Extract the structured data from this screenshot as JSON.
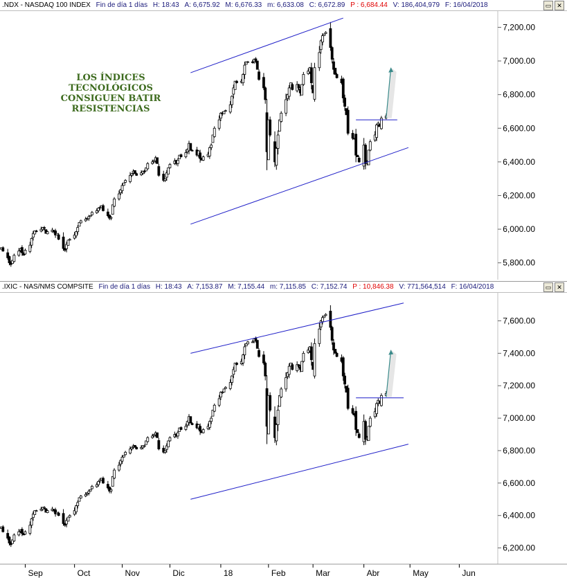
{
  "panels": [
    {
      "header": {
        "symbol": ".NDX - NASDAQ 100 INDEX",
        "period": "Fin de día 1 días",
        "h": "H: 18:43",
        "a": "A: 6,675.92",
        "m": "M: 6,676.33",
        "min": "m: 6,633.08",
        "c": "C: 6,672.89",
        "p": "P : 6,684.44",
        "v": "V: 186,404,979",
        "f": "F: 16/04/2018"
      },
      "buttons": {
        "restore": "▭",
        "close": "✕"
      }
    },
    {
      "header": {
        "symbol": ".IXIC - NAS/NMS COMPSITE",
        "period": "Fin de día 1 días",
        "h": "H: 18:43",
        "a": "A: 7,153.87",
        "m": "M: 7,155.44",
        "min": "m: 7,115.85",
        "c": "C: 7,152.74",
        "p": "P : 10,846.38",
        "v": "V: 771,564,514",
        "f": "F: 16/04/2018"
      },
      "buttons": {
        "restore": "▭",
        "close": "✕"
      }
    }
  ],
  "annotation": [
    "LOS ÍNDICES",
    "TECNOLÓGICOS",
    "CONSIGUEN BATIR",
    "RESISTENCIAS"
  ],
  "colors": {
    "candles": "#000000",
    "trendlines": "#1f1fc8",
    "arrow": "#3a8a8a",
    "annotation": "#3d6b1e",
    "price_red": "#e00000",
    "header_text": "#1a1a7a"
  },
  "chart_data": [
    {
      "type": "candlestick",
      "title": ".NDX - NASDAQ 100 INDEX",
      "x": {
        "start": "2017-08-17",
        "end": "2018-06-30",
        "unit": "trading day",
        "tick_labels": [
          "Sep",
          "Oct",
          "Nov",
          "Dic",
          "18",
          "Feb",
          "Mar",
          "Abr",
          "May",
          "Jun"
        ]
      },
      "y": {
        "range": [
          5700,
          7280
        ],
        "tick_labels": [
          "5,800.00",
          "6,000.00",
          "6,200.00",
          "6,400.00",
          "6,600.00",
          "6,800.00",
          "7,000.00",
          "7,200.00"
        ]
      },
      "close_series": [
        5890,
        5870,
        5830,
        5800,
        5790,
        5815,
        5845,
        5870,
        5885,
        5860,
        5845,
        5875,
        5905,
        5945,
        5975,
        5990,
        5985,
        6000,
        6010,
        6005,
        5975,
        5985,
        5995,
        5985,
        5965,
        5975,
        5940,
        5885,
        5875,
        5910,
        5935,
        5940,
        5965,
        5985,
        6010,
        6040,
        6050,
        6060,
        6065,
        6075,
        6080,
        6100,
        6110,
        6125,
        6130,
        6140,
        6110,
        6080,
        6065,
        6070,
        6145,
        6180,
        6210,
        6235,
        6260,
        6275,
        6290,
        6320,
        6330,
        6345,
        6330,
        6320,
        6335,
        6345,
        6340,
        6365,
        6390,
        6400,
        6410,
        6425,
        6390,
        6320,
        6290,
        6300,
        6335,
        6365,
        6385,
        6405,
        6390,
        6410,
        6440,
        6430,
        6455,
        6475,
        6510,
        6470,
        6465,
        6440,
        6465,
        6420,
        6410,
        6430,
        6445,
        6485,
        6500,
        6560,
        6600,
        6650,
        6690,
        6685,
        6700,
        6705,
        6740,
        6790,
        6840,
        6880,
        6870,
        6880,
        6920,
        6975,
        6995,
        6995,
        6990,
        7010,
        7000,
        6950,
        6890,
        6840,
        6770,
        6460,
        6650,
        6560,
        6400,
        6480,
        6560,
        6650,
        6690,
        6770,
        6800,
        6840,
        6870,
        6830,
        6860,
        6840,
        6810,
        6860,
        6920,
        6940,
        6960,
        6870,
        6810,
        6960,
        7050,
        7120,
        7150,
        7160,
        7170,
        7080,
        7010,
        6950,
        6920,
        6900,
        6870,
        6780,
        6730,
        6680,
        6570,
        6540,
        6540,
        6440,
        6430,
        6400,
        6500,
        6390,
        6400,
        6470,
        6520,
        6560,
        6620,
        6630,
        6610,
        6660,
        6672.89
      ],
      "series_name": "NDX",
      "trendlines": [
        {
          "from": [
            "2017-12-14",
            6030
          ],
          "to": [
            "2018-04-30",
            6485
          ]
        },
        {
          "from": [
            "2017-12-14",
            6930
          ],
          "to": [
            "2018-03-20",
            7255
          ]
        },
        {
          "from": [
            "2018-03-28",
            6650
          ],
          "to": [
            "2018-04-23",
            6650
          ]
        }
      ],
      "arrow": {
        "from": [
          "2018-04-16",
          6660
        ],
        "to": [
          "2018-04-19",
          6960
        ]
      }
    },
    {
      "type": "candlestick",
      "title": ".IXIC - NAS/NMS COMPSITE",
      "x": {
        "start": "2017-08-17",
        "end": "2018-06-30",
        "unit": "trading day",
        "tick_labels": [
          "Sep",
          "Oct",
          "Nov",
          "Dic",
          "18",
          "Feb",
          "Mar",
          "Abr",
          "May",
          "Jun"
        ]
      },
      "y": {
        "range": [
          6100,
          7760
        ],
        "tick_labels": [
          "6,200.00",
          "6,400.00",
          "6,600.00",
          "6,800.00",
          "7,000.00",
          "7,200.00",
          "7,400.00",
          "7,600.00"
        ]
      },
      "close_series": [
        6330,
        6300,
        6260,
        6230,
        6220,
        6250,
        6280,
        6300,
        6310,
        6290,
        6280,
        6300,
        6340,
        6380,
        6410,
        6430,
        6430,
        6440,
        6450,
        6450,
        6420,
        6430,
        6440,
        6430,
        6410,
        6420,
        6400,
        6350,
        6340,
        6370,
        6390,
        6400,
        6430,
        6460,
        6480,
        6510,
        6520,
        6530,
        6540,
        6550,
        6560,
        6580,
        6590,
        6610,
        6620,
        6630,
        6600,
        6570,
        6550,
        6560,
        6640,
        6680,
        6710,
        6740,
        6760,
        6770,
        6790,
        6810,
        6820,
        6830,
        6820,
        6810,
        6820,
        6830,
        6830,
        6860,
        6880,
        6890,
        6900,
        6910,
        6880,
        6810,
        6790,
        6800,
        6830,
        6860,
        6880,
        6900,
        6890,
        6910,
        6940,
        6930,
        6950,
        6980,
        7010,
        6970,
        6960,
        6940,
        6960,
        6920,
        6910,
        6930,
        6950,
        6980,
        7000,
        7050,
        7080,
        7120,
        7160,
        7160,
        7180,
        7190,
        7220,
        7260,
        7300,
        7340,
        7330,
        7350,
        7390,
        7440,
        7460,
        7470,
        7470,
        7490,
        7480,
        7430,
        7380,
        7340,
        7260,
        6950,
        7140,
        7050,
        6880,
        6960,
        7050,
        7140,
        7180,
        7250,
        7280,
        7320,
        7340,
        7300,
        7330,
        7320,
        7300,
        7350,
        7400,
        7420,
        7440,
        7360,
        7300,
        7460,
        7550,
        7600,
        7620,
        7630,
        7640,
        7560,
        7480,
        7420,
        7400,
        7380,
        7350,
        7260,
        7210,
        7160,
        7060,
        7030,
        7020,
        6930,
        6910,
        6880,
        6980,
        6870,
        6880,
        6950,
        7000,
        7040,
        7090,
        7110,
        7090,
        7140,
        7152.74
      ],
      "series_name": "IXIC",
      "trendlines": [
        {
          "from": [
            "2017-12-14",
            6500
          ],
          "to": [
            "2018-04-30",
            6840
          ]
        },
        {
          "from": [
            "2017-12-14",
            7400
          ],
          "to": [
            "2018-04-27",
            7710
          ]
        },
        {
          "from": [
            "2018-03-28",
            7125
          ],
          "to": [
            "2018-04-27",
            7125
          ]
        }
      ],
      "arrow": {
        "from": [
          "2018-04-16",
          7130
        ],
        "to": [
          "2018-04-19",
          7420
        ]
      }
    }
  ]
}
